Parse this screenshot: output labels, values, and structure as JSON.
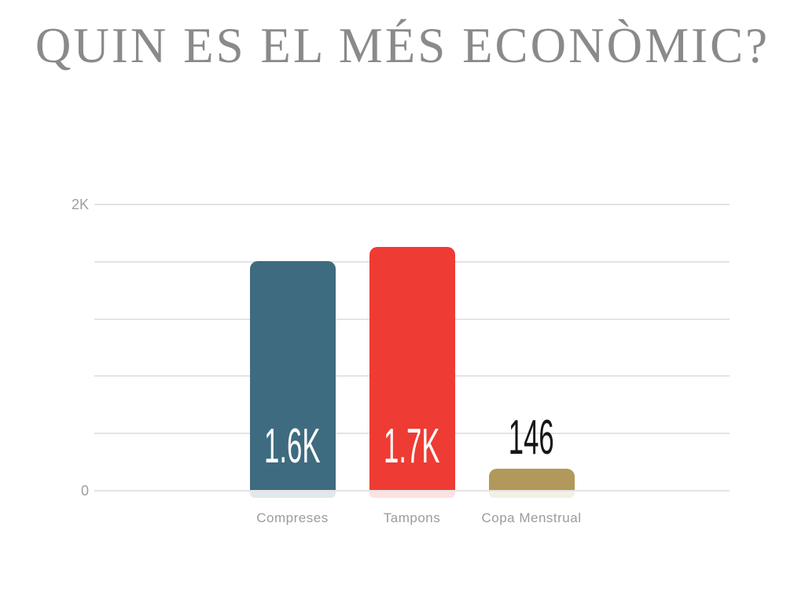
{
  "slide": {
    "title": "QUIN ES EL MÉS ECONÒMIC?"
  },
  "chart_data": {
    "type": "bar",
    "title": "QUIN ES EL MÉS ECONÒMIC?",
    "categories": [
      "Compreses",
      "Tampons",
      "Copa Menstrual"
    ],
    "values": [
      1600,
      1700,
      146
    ],
    "value_labels": [
      "1.6K",
      "1.7K",
      "146"
    ],
    "bar_colors": [
      "#3e6b7f",
      "#ee3b33",
      "#b2985a"
    ],
    "value_label_colors": [
      "#ffffff",
      "#ffffff",
      "#161616"
    ],
    "xlabel": "",
    "ylabel": "",
    "ylim": [
      0,
      2000
    ],
    "yticks": [
      {
        "value": 0,
        "label": "0"
      },
      {
        "value": 2000,
        "label": "2K"
      }
    ],
    "gridline_values": [
      0,
      400,
      800,
      1200,
      1600,
      2000
    ],
    "grid": true,
    "legend": "none"
  },
  "colors": {
    "background": "#ffffff",
    "title": "#8a8a8a",
    "axis_labels": "#9e9e9e",
    "category_labels": "#9b9b9b",
    "gridline": "#e4e4e4"
  }
}
